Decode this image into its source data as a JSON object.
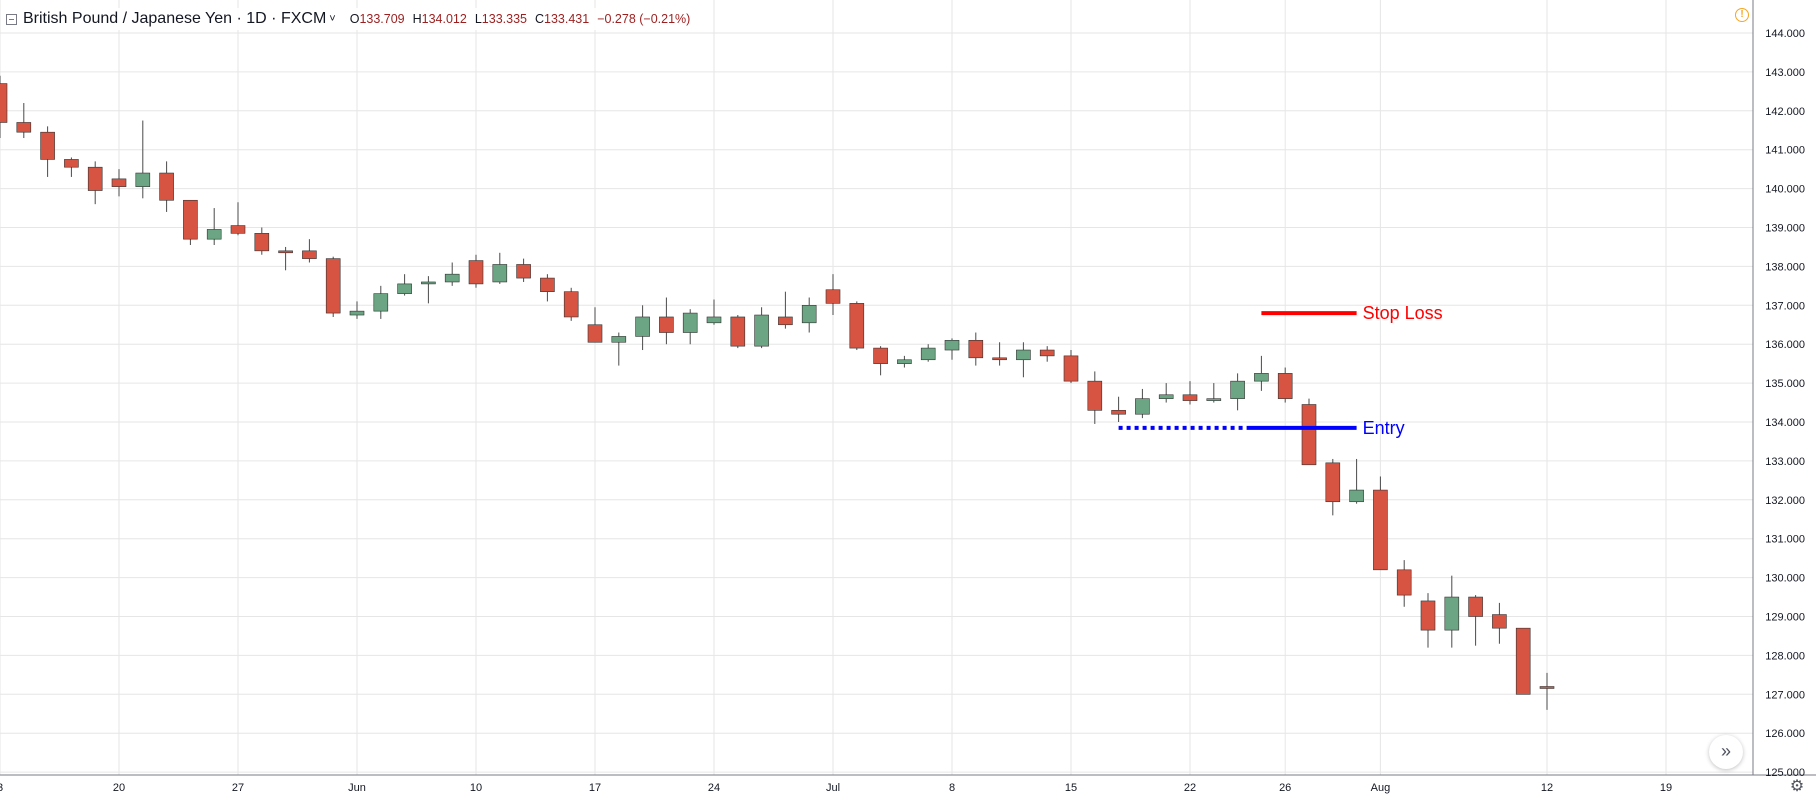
{
  "header": {
    "symbol_title": "British Pound / Japanese Yen · 1D · FXCM",
    "chevron": "˅",
    "ohlc": {
      "open_label": "O",
      "open": "133.709",
      "high_label": "H",
      "high": "134.012",
      "low_label": "L",
      "low": "133.335",
      "close_label": "C",
      "close": "133.431",
      "change": "−0.278 (−0.21%)"
    }
  },
  "alert_icon": "!",
  "scroll_button": "»",
  "settings_icon": "⚙",
  "colors": {
    "up": "#6ba583",
    "down": "#d75442",
    "wick": "#4a4a4a",
    "grid": "#e6e6e6",
    "stop_loss": "#ff0000",
    "entry": "#0000ff"
  },
  "chart_data": {
    "type": "candlestick",
    "title": "British Pound / Japanese Yen · 1D · FXCM",
    "ylim": [
      125.0,
      144.6
    ],
    "y_ticks": [
      "125.000",
      "126.000",
      "127.000",
      "128.000",
      "129.000",
      "130.000",
      "131.000",
      "132.000",
      "133.000",
      "134.000",
      "135.000",
      "136.000",
      "137.000",
      "138.000",
      "139.000",
      "140.000",
      "141.000",
      "142.000",
      "143.000",
      "144.000"
    ],
    "x_ticks": [
      {
        "label": "3",
        "day": 0
      },
      {
        "label": "20",
        "day": 5
      },
      {
        "label": "27",
        "day": 10
      },
      {
        "label": "Jun",
        "day": 15
      },
      {
        "label": "10",
        "day": 20
      },
      {
        "label": "17",
        "day": 25
      },
      {
        "label": "24",
        "day": 30
      },
      {
        "label": "Jul",
        "day": 35
      },
      {
        "label": "8",
        "day": 40
      },
      {
        "label": "15",
        "day": 45
      },
      {
        "label": "22",
        "day": 50
      },
      {
        "label": "26",
        "day": 54
      },
      {
        "label": "Aug",
        "day": 58
      },
      {
        "label": "12",
        "day": 65
      },
      {
        "label": "19",
        "day": 70
      }
    ],
    "grid": true,
    "candles": [
      {
        "o": 142.7,
        "h": 142.9,
        "l": 141.3,
        "c": 141.7
      },
      {
        "o": 141.7,
        "h": 142.2,
        "l": 141.3,
        "c": 141.45
      },
      {
        "o": 141.45,
        "h": 141.6,
        "l": 140.3,
        "c": 140.75
      },
      {
        "o": 140.75,
        "h": 140.8,
        "l": 140.3,
        "c": 140.55
      },
      {
        "o": 140.55,
        "h": 140.7,
        "l": 139.6,
        "c": 139.95
      },
      {
        "o": 140.25,
        "h": 140.5,
        "l": 139.8,
        "c": 140.05
      },
      {
        "o": 140.05,
        "h": 141.75,
        "l": 139.75,
        "c": 140.4
      },
      {
        "o": 140.4,
        "h": 140.7,
        "l": 139.4,
        "c": 139.7
      },
      {
        "o": 139.7,
        "h": 139.7,
        "l": 138.55,
        "c": 138.7
      },
      {
        "o": 138.7,
        "h": 139.5,
        "l": 138.55,
        "c": 138.95
      },
      {
        "o": 139.05,
        "h": 139.65,
        "l": 138.8,
        "c": 138.85
      },
      {
        "o": 138.85,
        "h": 139.0,
        "l": 138.3,
        "c": 138.4
      },
      {
        "o": 138.4,
        "h": 138.5,
        "l": 137.9,
        "c": 138.35
      },
      {
        "o": 138.4,
        "h": 138.7,
        "l": 138.1,
        "c": 138.2
      },
      {
        "o": 138.2,
        "h": 138.25,
        "l": 136.7,
        "c": 136.8
      },
      {
        "o": 136.75,
        "h": 137.1,
        "l": 136.65,
        "c": 136.85
      },
      {
        "o": 136.85,
        "h": 137.5,
        "l": 136.65,
        "c": 137.3
      },
      {
        "o": 137.3,
        "h": 137.8,
        "l": 137.25,
        "c": 137.55
      },
      {
        "o": 137.55,
        "h": 137.75,
        "l": 137.05,
        "c": 137.6
      },
      {
        "o": 137.6,
        "h": 138.1,
        "l": 137.5,
        "c": 137.8
      },
      {
        "o": 138.15,
        "h": 138.3,
        "l": 137.45,
        "c": 137.55
      },
      {
        "o": 137.6,
        "h": 138.35,
        "l": 137.55,
        "c": 138.05
      },
      {
        "o": 138.05,
        "h": 138.2,
        "l": 137.6,
        "c": 137.7
      },
      {
        "o": 137.7,
        "h": 137.8,
        "l": 137.1,
        "c": 137.35
      },
      {
        "o": 137.35,
        "h": 137.45,
        "l": 136.6,
        "c": 136.7
      },
      {
        "o": 136.5,
        "h": 136.95,
        "l": 136.05,
        "c": 136.05
      },
      {
        "o": 136.05,
        "h": 136.3,
        "l": 135.45,
        "c": 136.2
      },
      {
        "o": 136.2,
        "h": 137.0,
        "l": 135.85,
        "c": 136.7
      },
      {
        "o": 136.7,
        "h": 137.2,
        "l": 136.0,
        "c": 136.3
      },
      {
        "o": 136.3,
        "h": 136.9,
        "l": 136.0,
        "c": 136.8
      },
      {
        "o": 136.55,
        "h": 137.15,
        "l": 136.5,
        "c": 136.7
      },
      {
        "o": 136.7,
        "h": 136.75,
        "l": 135.9,
        "c": 135.95
      },
      {
        "o": 135.95,
        "h": 136.95,
        "l": 135.9,
        "c": 136.75
      },
      {
        "o": 136.7,
        "h": 137.35,
        "l": 136.4,
        "c": 136.5
      },
      {
        "o": 136.55,
        "h": 137.2,
        "l": 136.3,
        "c": 137.0
      },
      {
        "o": 137.4,
        "h": 137.8,
        "l": 136.75,
        "c": 137.05
      },
      {
        "o": 137.05,
        "h": 137.1,
        "l": 135.85,
        "c": 135.9
      },
      {
        "o": 135.9,
        "h": 135.95,
        "l": 135.2,
        "c": 135.5
      },
      {
        "o": 135.5,
        "h": 135.7,
        "l": 135.4,
        "c": 135.6
      },
      {
        "o": 135.6,
        "h": 136.0,
        "l": 135.55,
        "c": 135.9
      },
      {
        "o": 135.85,
        "h": 136.15,
        "l": 135.6,
        "c": 136.1
      },
      {
        "o": 136.1,
        "h": 136.3,
        "l": 135.45,
        "c": 135.65
      },
      {
        "o": 135.65,
        "h": 136.05,
        "l": 135.45,
        "c": 135.6
      },
      {
        "o": 135.6,
        "h": 136.05,
        "l": 135.15,
        "c": 135.85
      },
      {
        "o": 135.85,
        "h": 135.95,
        "l": 135.55,
        "c": 135.7
      },
      {
        "o": 135.7,
        "h": 135.85,
        "l": 135.0,
        "c": 135.05
      },
      {
        "o": 135.05,
        "h": 135.3,
        "l": 133.95,
        "c": 134.3
      },
      {
        "o": 134.3,
        "h": 134.65,
        "l": 134.0,
        "c": 134.2
      },
      {
        "o": 134.2,
        "h": 134.85,
        "l": 134.1,
        "c": 134.6
      },
      {
        "o": 134.6,
        "h": 135.0,
        "l": 134.5,
        "c": 134.7
      },
      {
        "o": 134.7,
        "h": 135.05,
        "l": 134.45,
        "c": 134.55
      },
      {
        "o": 134.55,
        "h": 135.0,
        "l": 134.5,
        "c": 134.6
      },
      {
        "o": 134.6,
        "h": 135.25,
        "l": 134.3,
        "c": 135.05
      },
      {
        "o": 135.05,
        "h": 135.7,
        "l": 134.8,
        "c": 135.25
      },
      {
        "o": 135.25,
        "h": 135.4,
        "l": 134.5,
        "c": 134.6
      },
      {
        "o": 134.45,
        "h": 134.6,
        "l": 132.9,
        "c": 132.9
      },
      {
        "o": 132.95,
        "h": 133.05,
        "l": 131.6,
        "c": 131.95
      },
      {
        "o": 131.95,
        "h": 133.05,
        "l": 131.9,
        "c": 132.25
      },
      {
        "o": 132.25,
        "h": 132.6,
        "l": 130.2,
        "c": 130.2
      },
      {
        "o": 130.2,
        "h": 130.45,
        "l": 129.25,
        "c": 129.55
      },
      {
        "o": 129.4,
        "h": 129.6,
        "l": 128.2,
        "c": 128.65
      },
      {
        "o": 128.65,
        "h": 130.05,
        "l": 128.2,
        "c": 129.5
      },
      {
        "o": 129.5,
        "h": 129.55,
        "l": 128.25,
        "c": 129.0
      },
      {
        "o": 129.05,
        "h": 129.35,
        "l": 128.3,
        "c": 128.7
      },
      {
        "o": 128.7,
        "h": 128.7,
        "l": 127.0,
        "c": 127.0
      },
      {
        "o": 127.2,
        "h": 127.55,
        "l": 126.6,
        "c": 127.15
      }
    ],
    "annotations": [
      {
        "label": "Stop Loss",
        "price": 136.8,
        "day_from": 53,
        "day_to": 57,
        "style": "solid",
        "color": "#ff0000"
      },
      {
        "label": "Entry",
        "price": 133.85,
        "day_from": 47,
        "day_to": 57,
        "dotted_until_day": 52.5,
        "color": "#0000ff"
      }
    ]
  }
}
